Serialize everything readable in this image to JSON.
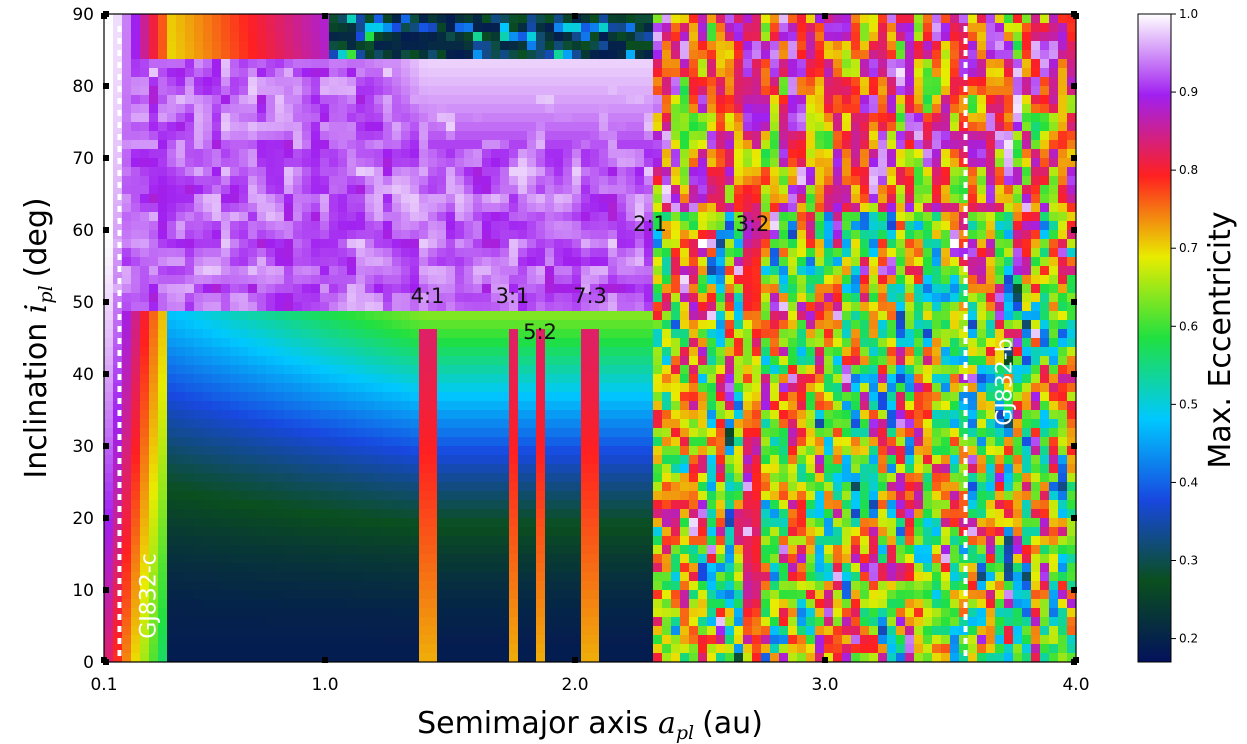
{
  "chart_data": {
    "type": "heatmap",
    "xlabel": "Semimajor axis",
    "xlabel_symbol": "a",
    "xlabel_sub": "pl",
    "xlabel_unit": "(au)",
    "ylabel": "Inclination",
    "ylabel_symbol": "i",
    "ylabel_sub": "pl",
    "ylabel_unit": "(deg)",
    "xlim": [
      0.1,
      4.0
    ],
    "ylim": [
      0,
      90
    ],
    "xticks": [
      {
        "value": 0.1,
        "label": "0.1"
      },
      {
        "value": 1.0,
        "label": "1.0"
      },
      {
        "value": 2.0,
        "label": "2.0"
      },
      {
        "value": 3.0,
        "label": "3.0"
      },
      {
        "value": 4.0,
        "label": "4.0"
      }
    ],
    "yticks": [
      0,
      10,
      20,
      30,
      40,
      50,
      60,
      70,
      80,
      90
    ],
    "colorbar": {
      "label": "Max. Eccentricity",
      "range": [
        0.17,
        1.0
      ],
      "ticks": [
        0.2,
        0.3,
        0.4,
        0.5,
        0.6,
        0.7,
        0.8,
        0.9,
        1.0
      ],
      "colors": [
        "#03115c",
        "#0a4f1e",
        "#1848e0",
        "#00c8ff",
        "#20e040",
        "#e8ec00",
        "#ff2020",
        "#a020f0",
        "#ffffff"
      ]
    },
    "resonances": [
      {
        "label": "4:1",
        "a": 1.41,
        "i": 51
      },
      {
        "label": "3:1",
        "a": 1.75,
        "i": 51
      },
      {
        "label": "5:2",
        "a": 1.86,
        "i": 46
      },
      {
        "label": "7:3",
        "a": 2.06,
        "i": 51
      },
      {
        "label": "2:1",
        "a": 2.3,
        "i": 61
      },
      {
        "label": "3:2",
        "a": 2.71,
        "i": 61
      }
    ],
    "planets": [
      {
        "label": "GJ832-c",
        "a": 0.163
      },
      {
        "label": "GJ832-b",
        "a": 3.56
      }
    ]
  }
}
